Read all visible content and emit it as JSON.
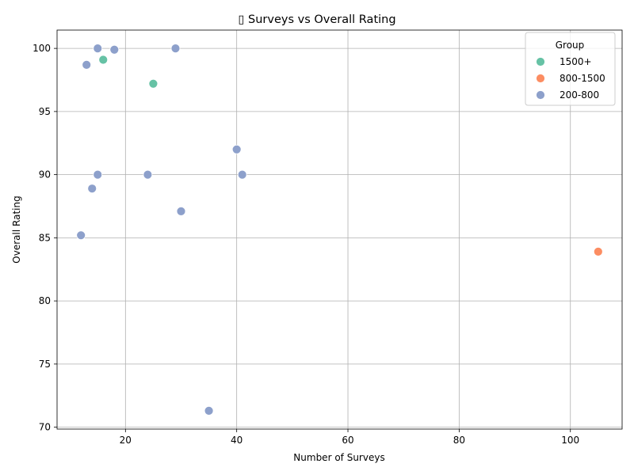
{
  "chart_data": {
    "type": "scatter",
    "title": "▯ Surveys vs Overall Rating",
    "xlabel": "Number of Surveys",
    "ylabel": "Overall Rating",
    "xlim": [
      7.7,
      109.3
    ],
    "ylim": [
      69.85,
      101.45
    ],
    "xticks": [
      20,
      40,
      60,
      80,
      100
    ],
    "yticks": [
      70,
      75,
      80,
      85,
      90,
      95,
      100
    ],
    "grid": true,
    "legend": {
      "title": "Group",
      "placement": "top-right"
    },
    "series": [
      {
        "name": "1500+",
        "color": "#66c2a5",
        "points": [
          {
            "x": 16,
            "y": 99.1
          },
          {
            "x": 25,
            "y": 97.2
          }
        ]
      },
      {
        "name": "800-1500",
        "color": "#fc8d62",
        "points": [
          {
            "x": 105,
            "y": 83.9
          }
        ]
      },
      {
        "name": "200-800",
        "color": "#8da0cb",
        "points": [
          {
            "x": 15,
            "y": 100.0
          },
          {
            "x": 18,
            "y": 99.9
          },
          {
            "x": 29,
            "y": 100.0
          },
          {
            "x": 13,
            "y": 98.7
          },
          {
            "x": 40,
            "y": 92.0
          },
          {
            "x": 15,
            "y": 90.0
          },
          {
            "x": 24,
            "y": 90.0
          },
          {
            "x": 41,
            "y": 90.0
          },
          {
            "x": 14,
            "y": 88.9
          },
          {
            "x": 30,
            "y": 87.1
          },
          {
            "x": 12,
            "y": 85.2
          },
          {
            "x": 35,
            "y": 71.3
          }
        ]
      }
    ]
  }
}
